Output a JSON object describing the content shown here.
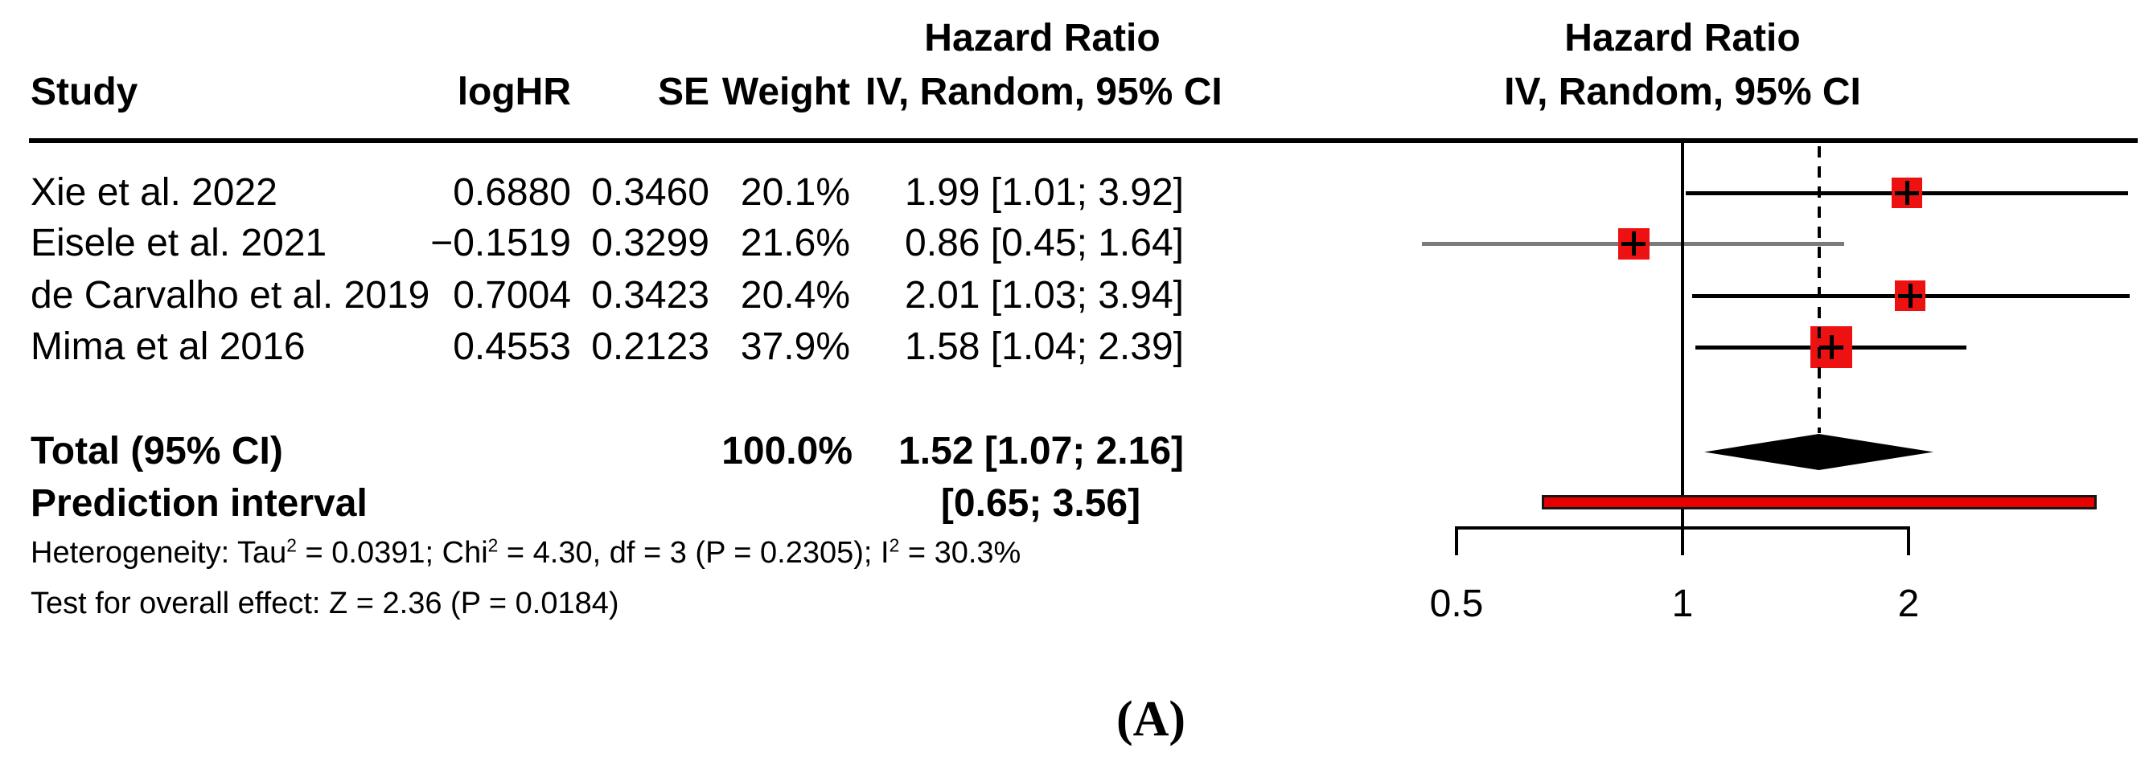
{
  "figure_caption": "(A)",
  "chart_data": {
    "type": "forest",
    "effect_measure": "Hazard Ratio",
    "model": "IV, Random, 95% CI",
    "columns": {
      "study": "Study",
      "loghr": "logHR",
      "se": "SE",
      "weight": "Weight",
      "effect_col_title": "Hazard Ratio",
      "effect_col_sub": "IV, Random, 95% CI",
      "plot_col_title": "Hazard Ratio",
      "plot_col_sub": "IV, Random, 95% CI"
    },
    "studies": [
      {
        "study": "Xie et al. 2022",
        "logHR": "0.6880",
        "SE": "0.3460",
        "weight": "20.1%",
        "weight_pct": 20.1,
        "hr": 1.99,
        "ci_low": 1.01,
        "ci_high": 3.92,
        "effect_label": "1.99 [1.01; 3.92]",
        "ci_line_color": "#000000"
      },
      {
        "study": "Eisele et al. 2021",
        "logHR": "−0.1519",
        "SE": "0.3299",
        "weight": "21.6%",
        "weight_pct": 21.6,
        "hr": 0.86,
        "ci_low": 0.45,
        "ci_high": 1.64,
        "effect_label": "0.86 [0.45; 1.64]",
        "ci_line_color": "#7b7b7b"
      },
      {
        "study": "de Carvalho et al. 2019",
        "logHR": "0.7004",
        "SE": "0.3423",
        "weight": "20.4%",
        "weight_pct": 20.4,
        "hr": 2.01,
        "ci_low": 1.03,
        "ci_high": 3.94,
        "effect_label": "2.01 [1.03; 3.94]",
        "ci_line_color": "#000000"
      },
      {
        "study": "Mima et al 2016",
        "logHR": "0.4553",
        "SE": "0.2123",
        "weight": "37.9%",
        "weight_pct": 37.9,
        "hr": 1.58,
        "ci_low": 1.04,
        "ci_high": 2.39,
        "effect_label": "1.58 [1.04; 2.39]",
        "ci_line_color": "#000000"
      }
    ],
    "total": {
      "label": "Total (95% CI)",
      "weight": "100.0%",
      "hr": 1.52,
      "ci_low": 1.07,
      "ci_high": 2.16,
      "effect_label": "1.52 [1.07; 2.16]"
    },
    "prediction_interval": {
      "label": "Prediction interval",
      "low": 0.65,
      "high": 3.56,
      "effect_label": "[0.65; 3.56]"
    },
    "heterogeneity_parts": [
      {
        "t": "Heterogeneity: Tau"
      },
      {
        "sup": "2"
      },
      {
        "t": " = 0.0391; Chi"
      },
      {
        "sup": "2"
      },
      {
        "t": " = 4.30, df = 3 (P = 0.2305); I"
      },
      {
        "sup": "2"
      },
      {
        "t": " = 30.3%"
      }
    ],
    "overall_effect_text": "Test for overall effect: Z = 2.36 (P = 0.0184)",
    "axis": {
      "scale": "log",
      "ticks": [
        {
          "value": 0.5,
          "label": "0.5"
        },
        {
          "value": 1,
          "label": "1"
        },
        {
          "value": 2,
          "label": "2"
        }
      ],
      "null_value": 1,
      "dashed_at": 1.52
    },
    "colors": {
      "marker_red": "#ee1111",
      "prediction_red": "#e60000",
      "grey_line": "#7b7b7b",
      "black": "#000000"
    }
  }
}
